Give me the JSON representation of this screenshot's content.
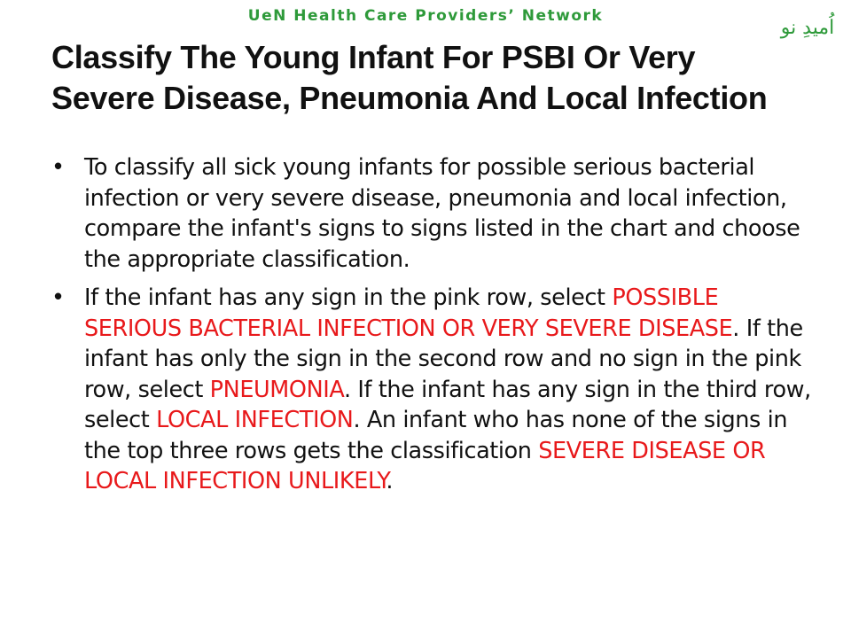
{
  "header": {
    "network_name": "UeN Health Care Providers’ Network",
    "logo_text": "اُمیدِ نو",
    "accent_color": "#2e9a3a"
  },
  "slide": {
    "title_line1": "Classify The Young Infant For PSBI Or Very",
    "title_line2": "Severe Disease, Pneumonia And Local Infection",
    "bullet_symbol": "•",
    "bullets": [
      {
        "text": "To classify all sick young infants for possible serious bacterial infection or very severe disease, pneumonia and local infection, compare the infant's signs to signs listed in the chart and choose the appropriate classification."
      },
      {
        "seg1": "If the infant has any sign in the pink row, select ",
        "hl1": "POSSIBLE SERIOUS BACTERIAL INFECTION OR VERY SEVERE DISEASE",
        "seg2": ". If the infant has only the sign in the second row and no sign in the pink row, select ",
        "hl2": "PNEUMONIA",
        "seg3": ". If the infant has any sign in the third row, select ",
        "hl3": "LOCAL INFECTION",
        "seg4": ".  An infant who has none of the signs in the top three rows gets the classification ",
        "hl4": "SEVERE DISEASE OR LOCAL INFECTION UNLIKELY",
        "seg5": "."
      }
    ],
    "highlight_color": "#e8191b"
  }
}
